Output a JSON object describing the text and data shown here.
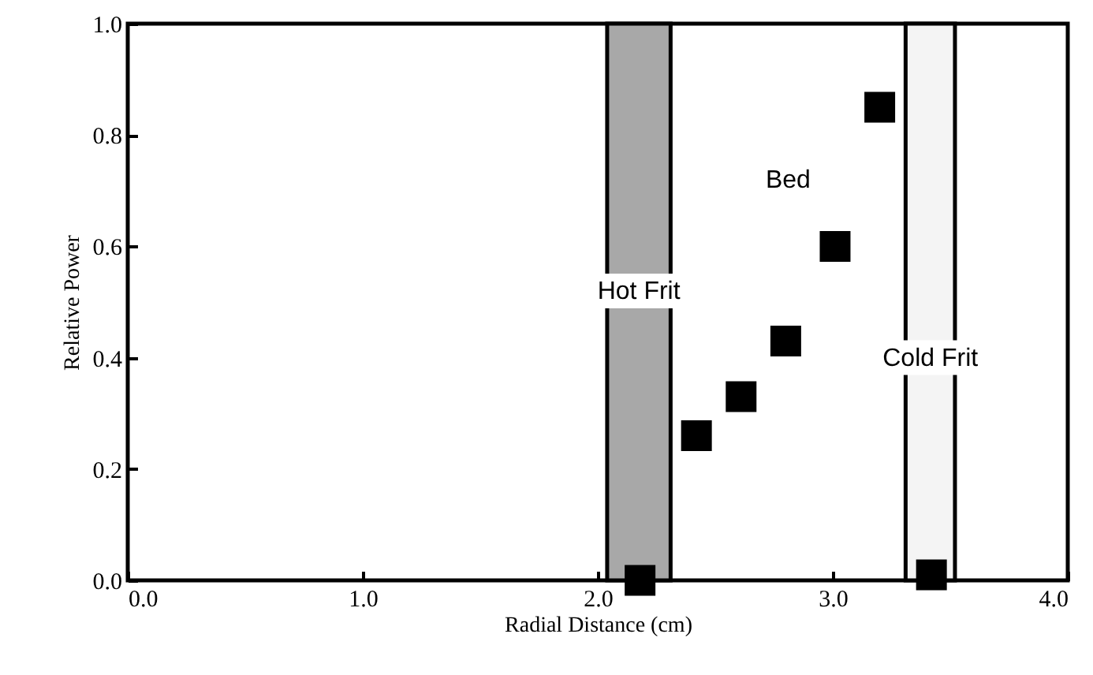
{
  "chart_data": {
    "type": "scatter",
    "xlabel": "Radial Distance (cm)",
    "ylabel": "Relative Power",
    "x": [
      2.18,
      2.42,
      2.61,
      2.8,
      3.01,
      3.2,
      3.42
    ],
    "series": [
      {
        "color": "#000000",
        "values": [
          0.0,
          0.26,
          0.33,
          0.43,
          0.6,
          0.85,
          0.01
        ]
      }
    ],
    "marker": "square",
    "xlim": [
      0,
      4
    ],
    "xticks": [
      {
        "value": 0,
        "label": "0.0"
      },
      {
        "value": 1,
        "label": "1.0"
      },
      {
        "value": 2,
        "label": "2.0"
      },
      {
        "value": 3,
        "label": "3.0"
      },
      {
        "value": 4,
        "label": "4.0"
      }
    ],
    "ylim": [
      0,
      1
    ],
    "yticks": [
      {
        "value": 0,
        "label": "0.0"
      },
      0.2,
      0.4,
      0.6,
      0.8,
      {
        "value": 1,
        "label": "1.0"
      }
    ],
    "bands": [
      {
        "axis": "x",
        "from": 2.04,
        "to": 2.31,
        "label": "Hot Frit",
        "color": "#a8a8a8"
      },
      {
        "axis": "x",
        "from": 3.31,
        "to": 3.52,
        "label": "Cold Frit",
        "color": "#f4f4f4"
      }
    ],
    "annotations": [
      "Bed"
    ]
  }
}
